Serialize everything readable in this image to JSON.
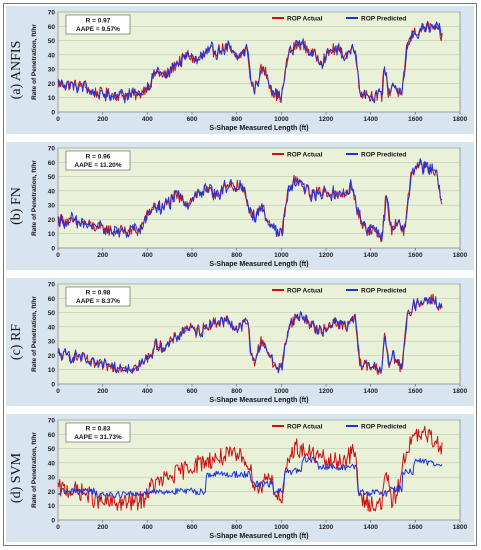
{
  "colors": {
    "actual": "#cc1111",
    "predicted": "#2233dd",
    "plot_bg": "#e9f2d9",
    "panel_bg": "#d9e4f1",
    "grid": "#bfc9b2"
  },
  "chart_data": [
    {
      "type": "line",
      "panel_label": "(a) ANFIS",
      "stats": {
        "r": "R = 0.97",
        "aape": "AAPE = 9.57%"
      },
      "xlabel": "S-Shape Measured Length (ft)",
      "ylabel": "Rate of Penetration, ft/hr",
      "xlim": [
        0,
        1800
      ],
      "ylim": [
        0,
        70
      ],
      "xticks": [
        0,
        200,
        400,
        600,
        800,
        1000,
        1200,
        1400,
        1600,
        1800
      ],
      "yticks": [
        0,
        10,
        20,
        30,
        40,
        50,
        60,
        70
      ],
      "legend": "top-right",
      "grid": true,
      "prediction_noise": 3.2,
      "prediction_mode": "track",
      "series": [
        {
          "name": "ROP Actual",
          "color": "#cc1111",
          "noise": 4.2,
          "x": [
            0,
            120,
            150,
            250,
            360,
            400,
            440,
            480,
            520,
            580,
            620,
            680,
            760,
            800,
            850,
            860,
            880,
            910,
            930,
            960,
            1000,
            1030,
            1060,
            1090,
            1130,
            1180,
            1230,
            1290,
            1330,
            1350,
            1400,
            1450,
            1460,
            1480,
            1500,
            1540,
            1560,
            1590,
            1630,
            1680,
            1720
          ],
          "y": [
            20,
            18,
            14,
            12,
            12,
            18,
            28,
            25,
            32,
            40,
            36,
            42,
            45,
            38,
            44,
            22,
            16,
            30,
            28,
            14,
            10,
            40,
            46,
            48,
            42,
            36,
            44,
            40,
            46,
            14,
            12,
            11,
            35,
            12,
            20,
            10,
            45,
            55,
            58,
            60,
            52
          ]
        },
        {
          "name": "ROP Predicted",
          "color": "#2233dd"
        }
      ]
    },
    {
      "type": "line",
      "panel_label": "(b) FN",
      "stats": {
        "r": "R = 0.96",
        "aape": "AAPE = 11.20%"
      },
      "xlabel": "S-Shape Measured Length (ft)",
      "ylabel": "Rate of Penetration, ft/hr",
      "xlim": [
        0,
        1800
      ],
      "ylim": [
        0,
        70
      ],
      "xticks": [
        0,
        200,
        400,
        600,
        800,
        1000,
        1200,
        1400,
        1600,
        1800
      ],
      "yticks": [
        0,
        10,
        20,
        30,
        40,
        50,
        60,
        70
      ],
      "legend": "top-right",
      "grid": true,
      "prediction_noise": 3.8,
      "prediction_mode": "track",
      "series": [
        {
          "name": "ROP Actual",
          "color": "#cc1111",
          "noise": 4.2,
          "x": [
            0,
            60,
            120,
            180,
            250,
            360,
            410,
            430,
            470,
            520,
            580,
            640,
            700,
            760,
            820,
            850,
            880,
            910,
            960,
            1000,
            1030,
            1060,
            1100,
            1140,
            1200,
            1260,
            1310,
            1340,
            1370,
            1420,
            1450,
            1470,
            1490,
            1520,
            1550,
            1580,
            1620,
            1660,
            1700,
            1720
          ],
          "y": [
            20,
            18,
            17,
            14,
            12,
            12,
            25,
            30,
            28,
            36,
            32,
            40,
            38,
            42,
            44,
            30,
            22,
            30,
            12,
            10,
            40,
            48,
            42,
            38,
            40,
            36,
            42,
            28,
            14,
            12,
            8,
            38,
            12,
            18,
            10,
            52,
            58,
            55,
            50,
            28
          ]
        },
        {
          "name": "ROP Predicted",
          "color": "#2233dd"
        }
      ]
    },
    {
      "type": "line",
      "panel_label": "(c) RF",
      "stats": {
        "r": "R = 0.98",
        "aape": "AAPE = 8.37%"
      },
      "xlabel": "S-Shape Measured Length (ft)",
      "ylabel": "Rate of Penetration, ft/hr",
      "xlim": [
        0,
        1800
      ],
      "ylim": [
        0,
        70
      ],
      "xticks": [
        0,
        200,
        400,
        600,
        800,
        1000,
        1200,
        1400,
        1600,
        1800
      ],
      "yticks": [
        0,
        10,
        20,
        30,
        40,
        50,
        60,
        70
      ],
      "legend": "top-right",
      "grid": true,
      "prediction_noise": 2.8,
      "prediction_mode": "track",
      "series": [
        {
          "name": "ROP Actual",
          "color": "#cc1111",
          "noise": 4.0,
          "x": [
            0,
            120,
            150,
            250,
            360,
            400,
            440,
            480,
            520,
            580,
            620,
            680,
            760,
            800,
            850,
            860,
            880,
            910,
            930,
            960,
            1000,
            1030,
            1060,
            1090,
            1130,
            1180,
            1230,
            1290,
            1330,
            1350,
            1400,
            1450,
            1460,
            1480,
            1500,
            1540,
            1560,
            1590,
            1630,
            1680,
            1720
          ],
          "y": [
            20,
            18,
            14,
            12,
            12,
            18,
            28,
            25,
            32,
            40,
            36,
            42,
            45,
            38,
            44,
            22,
            16,
            30,
            28,
            14,
            10,
            40,
            46,
            48,
            42,
            36,
            44,
            40,
            46,
            14,
            12,
            10,
            35,
            12,
            20,
            10,
            45,
            55,
            58,
            60,
            52
          ]
        },
        {
          "name": "ROP Predicted",
          "color": "#2233dd"
        }
      ]
    },
    {
      "type": "line",
      "panel_label": "(d) SVM",
      "stats": {
        "r": "R = 0.83",
        "aape": "AAPE = 31.73%"
      },
      "xlabel": "S-Shape Measured Length (ft)",
      "ylabel": "Rate of Penetration, ft/hr",
      "xlim": [
        0,
        1800
      ],
      "ylim": [
        0,
        70
      ],
      "xticks": [
        0,
        200,
        400,
        600,
        800,
        1000,
        1200,
        1400,
        1600,
        1800
      ],
      "yticks": [
        0,
        10,
        20,
        30,
        40,
        50,
        60,
        70
      ],
      "legend": "top-right",
      "grid": true,
      "prediction_noise": 2.4,
      "prediction_mode": "steps",
      "series": [
        {
          "name": "ROP Actual",
          "color": "#cc1111",
          "noise": 6.5,
          "x": [
            0,
            100,
            200,
            300,
            380,
            420,
            500,
            600,
            680,
            760,
            840,
            870,
            900,
            940,
            980,
            1000,
            1030,
            1060,
            1100,
            1160,
            1220,
            1280,
            1330,
            1350,
            1400,
            1450,
            1470,
            1490,
            1520,
            1560,
            1600,
            1640,
            1680,
            1720
          ],
          "y": [
            22,
            20,
            12,
            12,
            14,
            24,
            30,
            38,
            42,
            45,
            44,
            30,
            20,
            34,
            18,
            12,
            40,
            52,
            48,
            45,
            40,
            42,
            48,
            14,
            12,
            10,
            38,
            12,
            20,
            50,
            58,
            60,
            56,
            52
          ]
        },
        {
          "name": "ROP Predicted",
          "color": "#2233dd",
          "x": [
            0,
            160,
            165,
            380,
            385,
            660,
            665,
            860,
            865,
            960,
            965,
            1010,
            1015,
            1090,
            1095,
            1160,
            1165,
            1340,
            1345,
            1480,
            1485,
            1540,
            1545,
            1590,
            1595,
            1720
          ],
          "y": [
            20,
            20,
            18,
            18,
            20,
            20,
            32,
            32,
            25,
            25,
            20,
            20,
            34,
            34,
            42,
            42,
            37,
            37,
            19,
            19,
            22,
            22,
            34,
            34,
            42,
            38
          ]
        }
      ]
    }
  ]
}
